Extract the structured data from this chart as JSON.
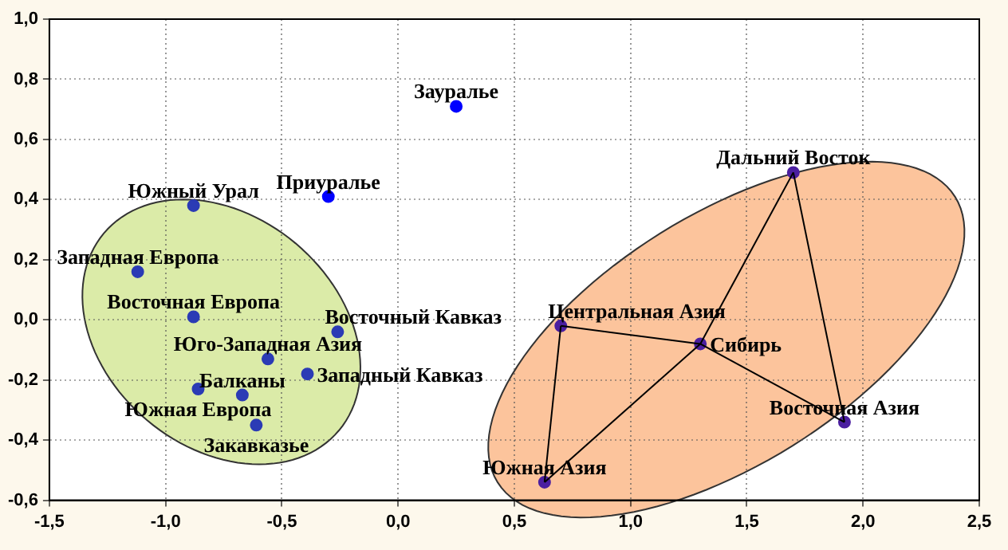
{
  "chart_data": {
    "type": "scatter",
    "xlim": [
      -1.5,
      2.5
    ],
    "ylim": [
      -0.6,
      1.0
    ],
    "xticks": [
      {
        "value": -1.5,
        "label": "-1,5"
      },
      {
        "value": -1,
        "label": "-1,0"
      },
      {
        "value": -0.5,
        "label": "-0,5"
      },
      {
        "value": 0,
        "label": "0,0"
      },
      {
        "value": 0.5,
        "label": "0,5"
      },
      {
        "value": 1,
        "label": "1,0"
      },
      {
        "value": 1.5,
        "label": "1,5"
      },
      {
        "value": 2,
        "label": "2,0"
      },
      {
        "value": 2.5,
        "label": "2,5"
      }
    ],
    "yticks": [
      {
        "value": -0.6,
        "label": "-0,6"
      },
      {
        "value": -0.4,
        "label": "-0,4"
      },
      {
        "value": -0.2,
        "label": "-0,2"
      },
      {
        "value": 0,
        "label": "0,0"
      },
      {
        "value": 0.2,
        "label": "0,2"
      },
      {
        "value": 0.4,
        "label": "0,4"
      },
      {
        "value": 0.6,
        "label": "0,6"
      },
      {
        "value": 0.8,
        "label": "0,8"
      },
      {
        "value": 1,
        "label": "1,0"
      }
    ],
    "grid": true,
    "legend": false,
    "marker": "circle",
    "series": [
      {
        "type": "line",
        "color": "#000000",
        "marker": "none",
        "x": [
          0.63,
          0.7
        ],
        "values": [
          -0.54,
          -0.02
        ]
      },
      {
        "type": "line",
        "color": "#000000",
        "marker": "none",
        "x": [
          0.7,
          1.3
        ],
        "values": [
          -0.02,
          -0.08
        ]
      },
      {
        "type": "line",
        "color": "#000000",
        "marker": "none",
        "x": [
          0.63,
          1.3
        ],
        "values": [
          -0.54,
          -0.08
        ]
      },
      {
        "type": "line",
        "color": "#000000",
        "marker": "none",
        "x": [
          1.3,
          1.7
        ],
        "values": [
          -0.08,
          0.49
        ]
      },
      {
        "type": "line",
        "color": "#000000",
        "marker": "none",
        "x": [
          1.3,
          1.92
        ],
        "values": [
          -0.08,
          -0.34
        ]
      },
      {
        "type": "line",
        "color": "#000000",
        "marker": "none",
        "x": [
          1.7,
          1.92
        ],
        "values": [
          0.49,
          -0.34
        ]
      },
      {
        "type": "scatter",
        "color": "#2b3bb5",
        "x": [
          0.25,
          -0.3,
          -0.88,
          -1.12,
          -0.88,
          -0.26,
          -0.56,
          -0.39,
          -0.67,
          -0.86,
          -0.61,
          0.7,
          1.3,
          1.7,
          1.92,
          0.63
        ],
        "values": [
          0.71,
          0.41,
          0.38,
          0.16,
          0.01,
          -0.04,
          -0.13,
          -0.18,
          -0.25,
          -0.23,
          -0.35,
          -0.02,
          -0.08,
          0.49,
          -0.34,
          -0.54
        ],
        "colors": [
          "#0000ff",
          "#0000ff",
          "#2b3bb5",
          "#2b3bb5",
          "#2b3bb5",
          "#2b3bb5",
          "#2b3bb5",
          "#2b3bb5",
          "#2b3bb5",
          "#2b3bb5",
          "#2b3bb5",
          "#4b1fa0",
          "#4b1fa0",
          "#4b1fa0",
          "#4b1fa0",
          "#4b1fa0"
        ]
      }
    ],
    "annotations": [
      {
        "text": "Зауралье",
        "x": 0.25,
        "y": 0.71
      },
      {
        "text": "Приуралье",
        "x": -0.3,
        "y": 0.41
      },
      {
        "text": "Южный Урал",
        "x": -0.88,
        "y": 0.38
      },
      {
        "text": "Западная Европа",
        "x": -1.12,
        "y": 0.16
      },
      {
        "text": "Восточная Европа",
        "x": -0.88,
        "y": 0.01
      },
      {
        "text": "Восточный Кавказ",
        "x": -0.26,
        "y": -0.04
      },
      {
        "text": "Юго-Западная Азия",
        "x": -0.56,
        "y": -0.13
      },
      {
        "text": "Западный Кавказ",
        "x": -0.39,
        "y": -0.18
      },
      {
        "text": "Балканы",
        "x": -0.67,
        "y": -0.25
      },
      {
        "text": "Южная Европа",
        "x": -0.86,
        "y": -0.23
      },
      {
        "text": "Закавказье",
        "x": -0.61,
        "y": -0.35
      },
      {
        "text": "Центральная Азия",
        "x": 0.7,
        "y": -0.02
      },
      {
        "text": "Сибирь",
        "x": 1.3,
        "y": -0.08
      },
      {
        "text": "Дальний Восток",
        "x": 1.7,
        "y": 0.49
      },
      {
        "text": "Восточная Азия",
        "x": 1.92,
        "y": -0.34
      },
      {
        "text": "Южная Азия",
        "x": 0.63,
        "y": -0.54
      }
    ]
  }
}
